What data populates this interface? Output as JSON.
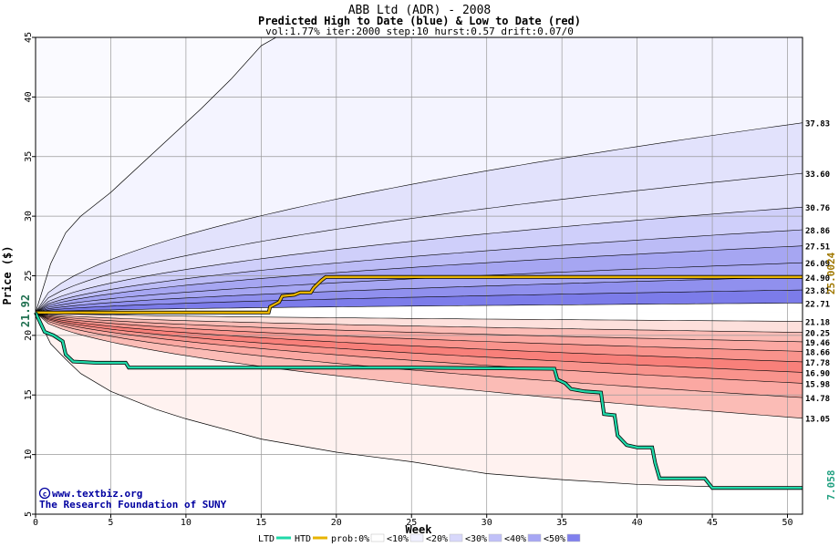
{
  "chart_data": {
    "type": "area",
    "title": "ABB Ltd (ADR) - 2008",
    "subtitle": "Predicted High to Date (blue) &  Low to Date (red)",
    "params": "vol:1.77% iter:2000 step:10 hurst:0.57 drift:0.07/0",
    "xlabel": "Week",
    "ylabel": "Price ($)",
    "xlim": [
      0,
      51
    ],
    "ylim": [
      5,
      45
    ],
    "xticks": [
      0,
      5,
      10,
      15,
      20,
      25,
      30,
      35,
      40,
      45,
      50
    ],
    "yticks": [
      5,
      10,
      15,
      20,
      25,
      30,
      35,
      40,
      45
    ],
    "grid": true,
    "start_price": 21.92,
    "start_price_label": "21.92",
    "high_band_ends": [
      37.83,
      33.6,
      30.76,
      28.86,
      27.51,
      26.09,
      24.9,
      23.81,
      22.71
    ],
    "low_band_ends": [
      21.18,
      20.25,
      19.46,
      18.66,
      17.78,
      16.9,
      15.98,
      14.78,
      13.05
    ],
    "right_labels": [
      "37.83",
      "33.60",
      "30.76",
      "28.86",
      "27.51",
      "26.09",
      "24.90",
      "23.81",
      "22.71",
      "21.18",
      "20.25",
      "19.46",
      "18.66",
      "17.78",
      "16.90",
      "15.98",
      "14.78",
      "13.05"
    ],
    "extreme_high_path": [
      [
        0,
        21.92
      ],
      [
        1,
        26
      ],
      [
        2,
        28.6
      ],
      [
        3,
        30.0
      ],
      [
        5,
        32.0
      ],
      [
        8,
        35.5
      ],
      [
        11,
        39.0
      ],
      [
        13,
        41.5
      ],
      [
        15,
        44.3
      ],
      [
        16,
        45.0
      ],
      [
        51,
        45.0
      ]
    ],
    "extreme_low_path": [
      [
        0,
        21.92
      ],
      [
        1,
        19.3
      ],
      [
        2,
        18.0
      ],
      [
        3,
        16.8
      ],
      [
        5,
        15.3
      ],
      [
        8,
        13.8
      ],
      [
        10,
        13.0
      ],
      [
        15,
        11.3
      ],
      [
        20,
        10.2
      ],
      [
        25,
        9.4
      ],
      [
        30,
        8.4
      ],
      [
        35,
        7.9
      ],
      [
        40,
        7.5
      ],
      [
        45,
        7.3
      ],
      [
        51,
        7.3
      ]
    ],
    "series": [
      {
        "name": "HTD",
        "color": "#e8b400",
        "points": [
          [
            0,
            21.92
          ],
          [
            0.5,
            21.92
          ],
          [
            1,
            21.92
          ],
          [
            15.5,
            21.92
          ],
          [
            15.6,
            22.4
          ],
          [
            16.2,
            22.8
          ],
          [
            16.4,
            23.3
          ],
          [
            17.2,
            23.4
          ],
          [
            17.6,
            23.6
          ],
          [
            18.3,
            23.6
          ],
          [
            18.5,
            24.0
          ],
          [
            19.0,
            24.6
          ],
          [
            19.3,
            24.9
          ],
          [
            51,
            24.9
          ]
        ]
      },
      {
        "name": "LTD",
        "color": "#20d8a8",
        "points": [
          [
            0,
            21.92
          ],
          [
            0.6,
            20.3
          ],
          [
            1.2,
            20.0
          ],
          [
            1.8,
            19.5
          ],
          [
            2.0,
            18.4
          ],
          [
            2.5,
            17.8
          ],
          [
            4,
            17.7
          ],
          [
            6,
            17.7
          ],
          [
            6.2,
            17.3
          ],
          [
            10,
            17.3
          ],
          [
            25,
            17.3
          ],
          [
            34.5,
            17.2
          ],
          [
            34.7,
            16.3
          ],
          [
            35.2,
            16.0
          ],
          [
            35.6,
            15.5
          ],
          [
            36.5,
            15.3
          ],
          [
            37.6,
            15.2
          ],
          [
            37.8,
            13.4
          ],
          [
            38.5,
            13.3
          ],
          [
            38.7,
            11.6
          ],
          [
            39.3,
            10.8
          ],
          [
            40.0,
            10.6
          ],
          [
            41.0,
            10.6
          ],
          [
            41.2,
            9.3
          ],
          [
            41.5,
            8.0
          ],
          [
            44.5,
            8.0
          ],
          [
            45.0,
            7.2
          ],
          [
            51,
            7.2
          ]
        ]
      }
    ],
    "right_end_high_label": "25.0024",
    "right_end_low_label": "7.058",
    "legend": {
      "items": [
        {
          "label": "LTD",
          "color": "#20d8a8"
        },
        {
          "label": "HTD",
          "color": "#e8b400"
        },
        {
          "label": "prob:0%",
          "color": "#ffffff"
        },
        {
          "label": "<10%",
          "color": "#f0f0ff"
        },
        {
          "label": "<20%",
          "color": "#d8d8fb"
        },
        {
          "label": "<30%",
          "color": "#c0c0f8"
        },
        {
          "label": "<40%",
          "color": "#a6a6f4"
        },
        {
          "label": "<50%",
          "color": "#8080ee"
        }
      ],
      "placement": "bottom"
    },
    "watermark_lines": [
      "www.textbiz.org",
      "The Research Foundation of SUNY"
    ],
    "colors": {
      "blue_bands": [
        "#f4f4ff",
        "#e2e2fc",
        "#cfcffa",
        "#bcbcf6",
        "#a6a6f2",
        "#9090ee",
        "#7c7cea"
      ],
      "red_bands": [
        "#fff2f0",
        "#fde0dc",
        "#fcd0ca",
        "#fbbcb6",
        "#fba8a2",
        "#f9938c",
        "#f8807a"
      ],
      "grid": "#999999",
      "title_text": "#000000",
      "watermark": "#0000a0",
      "high_end_label": "#a07800",
      "low_end_label": "#20a080"
    }
  }
}
